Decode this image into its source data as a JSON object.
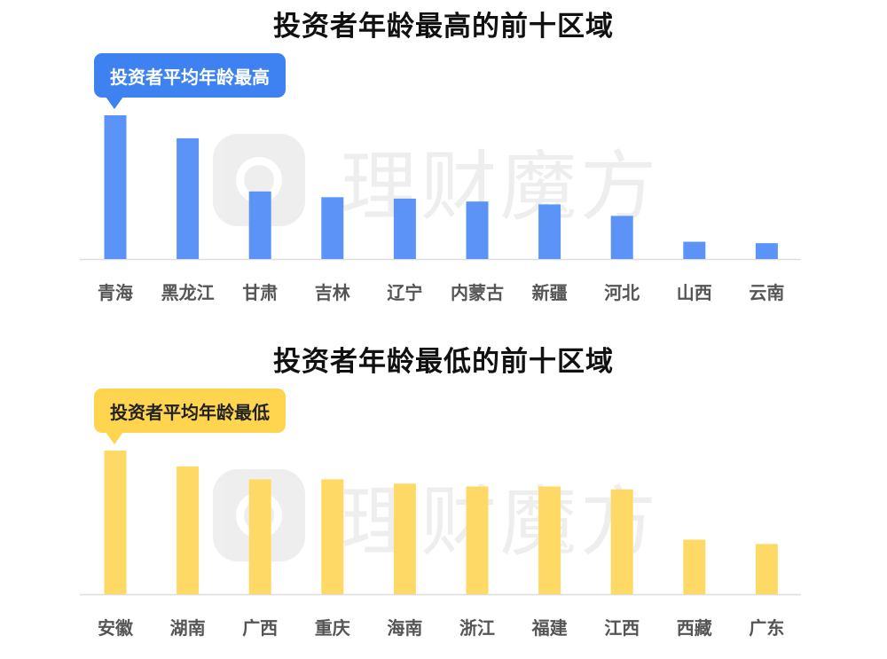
{
  "watermark": {
    "text": "理财魔方"
  },
  "chart_data": [
    {
      "type": "bar",
      "title": "投资者年龄最高的前十区域",
      "callout": "投资者平均年龄最高",
      "color": "#5b94f6",
      "categories": [
        "青海",
        "黑龙江",
        "甘肃",
        "吉林",
        "辽宁",
        "内蒙古",
        "新疆",
        "河北",
        "山西",
        "云南"
      ],
      "values": [
        100,
        84,
        47,
        43,
        42,
        40,
        38,
        30,
        12,
        11
      ],
      "ylim": [
        0,
        100
      ],
      "grid": false,
      "axes_visible": false
    },
    {
      "type": "bar",
      "title": "投资者年龄最低的前十区域",
      "callout": "投资者平均年龄最低",
      "color": "#ffd966",
      "categories": [
        "安徽",
        "湖南",
        "广西",
        "重庆",
        "海南",
        "浙江",
        "福建",
        "江西",
        "西藏",
        "广东"
      ],
      "values": [
        100,
        89,
        80,
        80,
        77,
        75,
        75,
        73,
        38,
        35
      ],
      "ylim": [
        0,
        100
      ],
      "grid": false,
      "axes_visible": false
    }
  ]
}
